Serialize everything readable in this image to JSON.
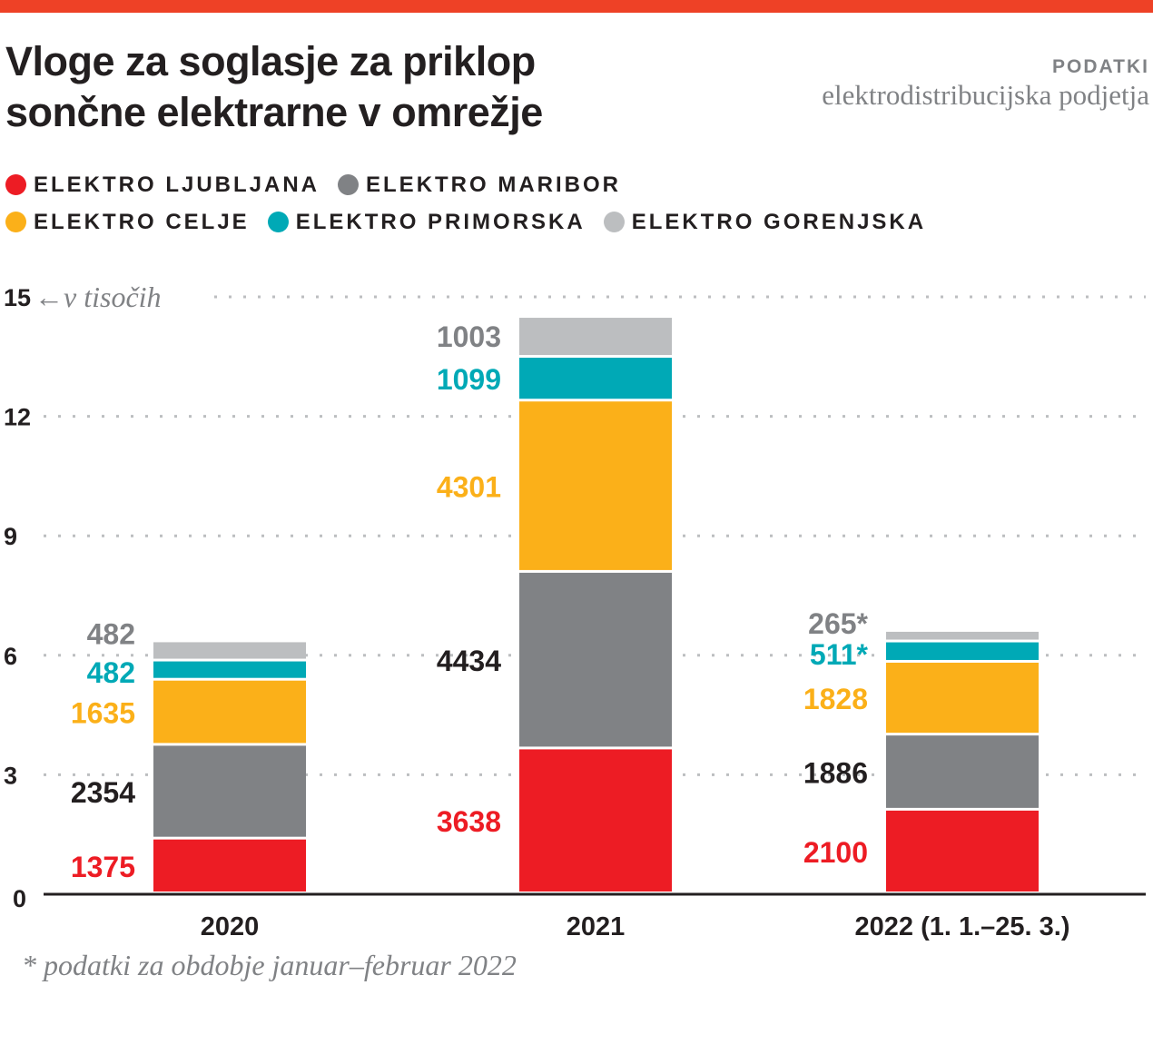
{
  "header": {
    "title_line1": "Vloge za soglasje za priklop",
    "title_line2": "sončne elektrarne v omrežje",
    "source_label": "PODATKI",
    "source_text": "elektrodistribucijska podjetja"
  },
  "legend": {
    "items": [
      {
        "label": "ELEKTRO LJUBLJANA",
        "color": "#ed1c24"
      },
      {
        "label": "ELEKTRO MARIBOR",
        "color": "#808285"
      },
      {
        "label": "ELEKTRO CELJE",
        "color": "#fbb019"
      },
      {
        "label": "ELEKTRO PRIMORSKA",
        "color": "#00a9b6"
      },
      {
        "label": "ELEKTRO GORENJSKA",
        "color": "#bcbec0"
      }
    ]
  },
  "footnote": "* podatki za obdobje januar–februar 2022",
  "chart_data": {
    "type": "bar",
    "stacked": true,
    "title": "Vloge za soglasje za priklop sončne elektrarne v omrežje",
    "unit_label": "←v tisočih",
    "xlabel": "",
    "ylabel": "v tisočih",
    "ylim": [
      0,
      15
    ],
    "yticks": [
      0,
      3,
      6,
      9,
      12,
      15
    ],
    "grid": true,
    "legend_position": "top-left",
    "categories": [
      "2020",
      "2021",
      "2022 (1. 1.–25. 3.)"
    ],
    "series": [
      {
        "name": "ELEKTRO LJUBLJANA",
        "color": "#ed1c24",
        "label_color": "#ed1c24",
        "values": [
          1375,
          3638,
          2100
        ],
        "labels": [
          "1375",
          "3638",
          "2100"
        ]
      },
      {
        "name": "ELEKTRO MARIBOR",
        "color": "#808285",
        "label_color": "#231f20",
        "values": [
          2354,
          4434,
          1886
        ],
        "labels": [
          "2354",
          "4434",
          "1886"
        ]
      },
      {
        "name": "ELEKTRO CELJE",
        "color": "#fbb019",
        "label_color": "#fbb019",
        "values": [
          1635,
          4301,
          1828
        ],
        "labels": [
          "1635",
          "4301",
          "1828"
        ]
      },
      {
        "name": "ELEKTRO PRIMORSKA",
        "color": "#00a9b6",
        "label_color": "#00a9b6",
        "values": [
          482,
          1099,
          511
        ],
        "labels": [
          "482",
          "1099",
          "511*"
        ]
      },
      {
        "name": "ELEKTRO GORENJSKA",
        "color": "#bcbec0",
        "label_color": "#808285",
        "values": [
          482,
          1003,
          265
        ],
        "labels": [
          "482",
          "1003",
          "265*"
        ]
      }
    ],
    "annotations": [
      "* podatki za obdobje januar–februar 2022"
    ]
  }
}
